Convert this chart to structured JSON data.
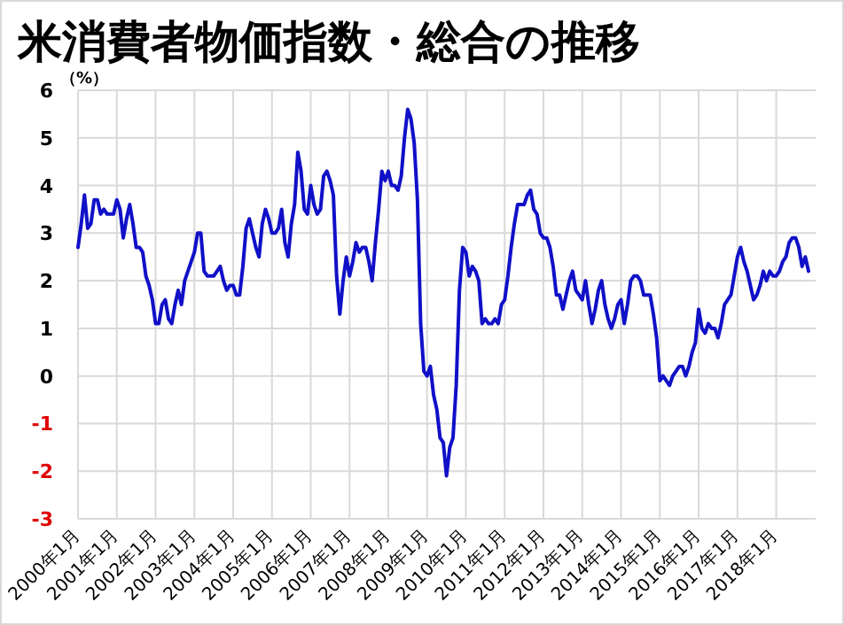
{
  "chart_data": {
    "type": "line",
    "title": "米消費者物価指数・総合の推移",
    "ylabel": "（%）",
    "categories": [
      "2000年1月",
      null,
      null,
      null,
      null,
      null,
      null,
      null,
      null,
      null,
      null,
      null,
      "2001年1月",
      null,
      null,
      null,
      null,
      null,
      null,
      null,
      null,
      null,
      null,
      null,
      "2002年1月",
      null,
      null,
      null,
      null,
      null,
      null,
      null,
      null,
      null,
      null,
      null,
      "2003年1月",
      null,
      null,
      null,
      null,
      null,
      null,
      null,
      null,
      null,
      null,
      null,
      "2004年1月",
      null,
      null,
      null,
      null,
      null,
      null,
      null,
      null,
      null,
      null,
      null,
      "2005年1月",
      null,
      null,
      null,
      null,
      null,
      null,
      null,
      null,
      null,
      null,
      null,
      "2006年1月",
      null,
      null,
      null,
      null,
      null,
      null,
      null,
      null,
      null,
      null,
      null,
      "2007年1月",
      null,
      null,
      null,
      null,
      null,
      null,
      null,
      null,
      null,
      null,
      null,
      "2008年1月",
      null,
      null,
      null,
      null,
      null,
      null,
      null,
      null,
      null,
      null,
      null,
      "2009年1月",
      null,
      null,
      null,
      null,
      null,
      null,
      null,
      null,
      null,
      null,
      null,
      "2010年1月",
      null,
      null,
      null,
      null,
      null,
      null,
      null,
      null,
      null,
      null,
      null,
      "2011年1月",
      null,
      null,
      null,
      null,
      null,
      null,
      null,
      null,
      null,
      null,
      null,
      "2012年1月",
      null,
      null,
      null,
      null,
      null,
      null,
      null,
      null,
      null,
      null,
      null,
      "2013年1月",
      null,
      null,
      null,
      null,
      null,
      null,
      null,
      null,
      null,
      null,
      null,
      "2014年1月",
      null,
      null,
      null,
      null,
      null,
      null,
      null,
      null,
      null,
      null,
      null,
      "2015年1月",
      null,
      null,
      null,
      null,
      null,
      null,
      null,
      null,
      null,
      null,
      null,
      "2016年1月",
      null,
      null,
      null,
      null,
      null,
      null,
      null,
      null,
      null,
      null,
      null,
      "2017年1月",
      null,
      null,
      null,
      null,
      null,
      null,
      null,
      null,
      null,
      null,
      null,
      "2018年1月",
      null,
      null,
      null,
      null,
      null,
      null,
      null,
      null,
      null,
      null
    ],
    "series": [
      {
        "color": "#1010c8",
        "values": [
          2.7,
          3.2,
          3.8,
          3.1,
          3.2,
          3.7,
          3.7,
          3.4,
          3.5,
          3.4,
          3.4,
          3.4,
          3.7,
          3.5,
          2.9,
          3.3,
          3.6,
          3.2,
          2.7,
          2.7,
          2.6,
          2.1,
          1.9,
          1.6,
          1.1,
          1.1,
          1.5,
          1.6,
          1.2,
          1.1,
          1.5,
          1.8,
          1.5,
          2.0,
          2.2,
          2.4,
          2.6,
          3.0,
          3.0,
          2.2,
          2.1,
          2.1,
          2.1,
          2.2,
          2.3,
          2.0,
          1.8,
          1.9,
          1.9,
          1.7,
          1.7,
          2.3,
          3.1,
          3.3,
          3.0,
          2.7,
          2.5,
          3.2,
          3.5,
          3.3,
          3.0,
          3.0,
          3.1,
          3.5,
          2.8,
          2.5,
          3.2,
          3.6,
          4.7,
          4.3,
          3.5,
          3.4,
          4.0,
          3.6,
          3.4,
          3.5,
          4.2,
          4.3,
          4.1,
          3.8,
          2.1,
          1.3,
          2.0,
          2.5,
          2.1,
          2.4,
          2.8,
          2.6,
          2.7,
          2.7,
          2.4,
          2.0,
          2.8,
          3.5,
          4.3,
          4.1,
          4.3,
          4.0,
          4.0,
          3.9,
          4.2,
          5.0,
          5.6,
          5.4,
          4.9,
          3.7,
          1.1,
          0.1,
          0.0,
          0.2,
          -0.4,
          -0.7,
          -1.3,
          -1.4,
          -2.1,
          -1.5,
          -1.3,
          -0.2,
          1.8,
          2.7,
          2.6,
          2.1,
          2.3,
          2.2,
          2.0,
          1.1,
          1.2,
          1.1,
          1.1,
          1.2,
          1.1,
          1.5,
          1.6,
          2.1,
          2.7,
          3.2,
          3.6,
          3.6,
          3.6,
          3.8,
          3.9,
          3.5,
          3.4,
          3.0,
          2.9,
          2.9,
          2.7,
          2.3,
          1.7,
          1.7,
          1.4,
          1.7,
          2.0,
          2.2,
          1.8,
          1.7,
          1.6,
          2.0,
          1.5,
          1.1,
          1.4,
          1.8,
          2.0,
          1.5,
          1.2,
          1.0,
          1.2,
          1.5,
          1.6,
          1.1,
          1.5,
          2.0,
          2.1,
          2.1,
          2.0,
          1.7,
          1.7,
          1.7,
          1.3,
          0.8,
          -0.1,
          0.0,
          -0.1,
          -0.2,
          0.0,
          0.1,
          0.2,
          0.2,
          0.0,
          0.2,
          0.5,
          0.7,
          1.4,
          1.0,
          0.9,
          1.1,
          1.0,
          1.0,
          0.8,
          1.1,
          1.5,
          1.6,
          1.7,
          2.1,
          2.5,
          2.7,
          2.4,
          2.2,
          1.9,
          1.6,
          1.7,
          1.9,
          2.2,
          2.0,
          2.2,
          2.1,
          2.1,
          2.2,
          2.4,
          2.5,
          2.8,
          2.9,
          2.9,
          2.7,
          2.3,
          2.5,
          2.2
        ]
      }
    ],
    "ylim": [
      -3,
      6
    ],
    "yticks": [
      -3,
      -2,
      -1,
      0,
      1,
      2,
      3,
      4,
      5,
      6
    ],
    "grid": true,
    "marker": "none",
    "line_style": "solid"
  }
}
